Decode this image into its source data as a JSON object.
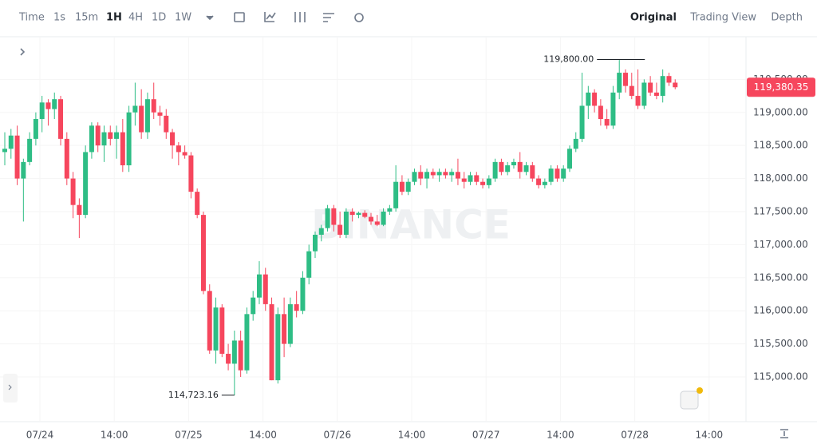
{
  "toolbar": {
    "intervals": [
      "Time",
      "1s",
      "15m",
      "1H",
      "4H",
      "1D",
      "1W"
    ],
    "active_interval": 3,
    "views": [
      "Original",
      "Trading View",
      "Depth"
    ],
    "active_view": 0
  },
  "chart_data": {
    "type": "candlestick",
    "watermark": "BINANCE",
    "up_color": "#2ebd85",
    "down_color": "#f6465d",
    "open": [
      118400,
      118450,
      118650,
      118000,
      118250,
      118600,
      118900,
      119150,
      119050,
      119200,
      118600,
      118000,
      117600,
      117450,
      118400,
      118800,
      118500,
      118700,
      118600,
      118700,
      118200,
      119000,
      119100,
      118700,
      119200,
      119000,
      118950,
      118700,
      118500,
      118400,
      118350,
      117800,
      117450,
      116300,
      115400,
      116050,
      115350,
      115200,
      115550,
      115100,
      115950,
      116200,
      116550,
      116100,
      114950,
      115950,
      115500,
      116100,
      116000,
      116500,
      116900,
      117150,
      117250,
      117550,
      117300,
      117150,
      117500,
      117450,
      117480,
      117420,
      117350,
      117300,
      117500,
      117550,
      117950,
      117800,
      117950,
      118100,
      118000,
      118100,
      118050,
      118100,
      118050,
      118100,
      118000,
      117950,
      118050,
      117950,
      117900,
      118000,
      118250,
      118100,
      118200,
      118250,
      118100,
      118200,
      118000,
      117900,
      117950,
      118150,
      118000,
      118150,
      118450,
      118600,
      119100,
      119300,
      119100,
      118900,
      118800,
      119300,
      119600,
      119400,
      119250,
      119100,
      119450,
      119300,
      119250,
      119550,
      119450
    ],
    "high": [
      118700,
      118750,
      118800,
      118300,
      118700,
      119000,
      119250,
      119200,
      119300,
      119250,
      118700,
      118100,
      117700,
      118500,
      118850,
      118850,
      118800,
      118800,
      118800,
      118900,
      119100,
      119450,
      119350,
      119300,
      119450,
      119100,
      119050,
      118750,
      118550,
      118500,
      118400,
      117850,
      117500,
      116400,
      116200,
      116100,
      115500,
      115700,
      115700,
      116050,
      116300,
      116750,
      116650,
      116200,
      116050,
      116200,
      116200,
      116300,
      116600,
      117000,
      117200,
      117300,
      117600,
      117600,
      117500,
      117550,
      117550,
      117500,
      117520,
      117480,
      117450,
      117550,
      117600,
      118200,
      118050,
      118000,
      118150,
      118200,
      118150,
      118150,
      118150,
      118150,
      118150,
      118300,
      118100,
      118100,
      118100,
      118000,
      118050,
      118300,
      118300,
      118250,
      118300,
      118400,
      118250,
      118250,
      118050,
      118000,
      118200,
      118200,
      118200,
      118500,
      118700,
      119600,
      119400,
      119350,
      119200,
      119050,
      119400,
      119800,
      119650,
      119600,
      119650,
      119500,
      119550,
      119450,
      119650,
      119600,
      119500
    ],
    "low": [
      118200,
      118300,
      117900,
      117350,
      118200,
      118500,
      118700,
      118800,
      118900,
      118500,
      117900,
      117400,
      117100,
      117400,
      118300,
      118400,
      118250,
      118500,
      118300,
      118100,
      118100,
      118800,
      118600,
      118600,
      118900,
      118800,
      118600,
      118300,
      118200,
      118300,
      117700,
      117400,
      116250,
      115350,
      115200,
      115300,
      115100,
      114723.16,
      115000,
      115050,
      115850,
      116100,
      116000,
      114950,
      114900,
      115300,
      115450,
      115900,
      115950,
      116400,
      116800,
      117050,
      117200,
      117200,
      117100,
      117100,
      117350,
      117400,
      117400,
      117300,
      117280,
      117280,
      117450,
      117500,
      117750,
      117750,
      117900,
      117900,
      117850,
      118000,
      117950,
      118000,
      117950,
      117900,
      117850,
      117900,
      117900,
      117850,
      117850,
      117950,
      118050,
      118050,
      118150,
      118000,
      118050,
      117950,
      117850,
      117850,
      117900,
      117950,
      117950,
      118100,
      118400,
      118550,
      118900,
      119000,
      118800,
      118750,
      118750,
      119200,
      119300,
      119200,
      119050,
      119050,
      119250,
      119200,
      119150,
      119400,
      119350
    ],
    "close": [
      118450,
      118650,
      118000,
      118250,
      118600,
      118900,
      119150,
      119050,
      119200,
      118600,
      118000,
      117600,
      117450,
      118400,
      118800,
      118500,
      118700,
      118600,
      118700,
      118200,
      119000,
      119100,
      118700,
      119200,
      119000,
      118950,
      118700,
      118500,
      118400,
      118350,
      117800,
      117450,
      116300,
      115400,
      116050,
      115350,
      115200,
      115550,
      115100,
      115950,
      116200,
      116550,
      116100,
      114950,
      115950,
      115500,
      116100,
      116000,
      116500,
      116900,
      117150,
      117250,
      117550,
      117300,
      117150,
      117500,
      117450,
      117480,
      117420,
      117350,
      117300,
      117500,
      117550,
      117950,
      117800,
      117950,
      118100,
      118000,
      118100,
      118050,
      118100,
      118050,
      118100,
      118000,
      117950,
      118050,
      117950,
      117900,
      118000,
      118250,
      118100,
      118200,
      118250,
      118100,
      118200,
      118000,
      117900,
      117950,
      118150,
      118000,
      118150,
      118450,
      118600,
      119100,
      119300,
      119100,
      118900,
      118800,
      119300,
      119600,
      119400,
      119250,
      119100,
      119450,
      119300,
      119250,
      119550,
      119450,
      119380.35
    ],
    "x_labels": [
      "07/24",
      "14:00",
      "07/25",
      "14:00",
      "07/26",
      "14:00",
      "07/27",
      "14:00",
      "07/28",
      "14:00"
    ],
    "ylim": [
      114360,
      120120
    ],
    "yticks": [
      {
        "value": 115000,
        "label": "115,000.00"
      },
      {
        "value": 115500,
        "label": "115,500.00"
      },
      {
        "value": 116000,
        "label": "116,000.00"
      },
      {
        "value": 116500,
        "label": "116,500.00"
      },
      {
        "value": 117000,
        "label": "117,000.00"
      },
      {
        "value": 117500,
        "label": "117,500.00"
      },
      {
        "value": 118000,
        "label": "118,000.00"
      },
      {
        "value": 118500,
        "label": "118,500.00"
      },
      {
        "value": 119000,
        "label": "119,000.00"
      },
      {
        "value": 119500,
        "label": "119,500.00"
      }
    ],
    "high_marker": {
      "value": 119800,
      "label": "119,800.00"
    },
    "low_marker": {
      "value": 114723.16,
      "label": "114,723.16"
    },
    "last_price": {
      "value": 119380.35,
      "label": "119,380.35"
    },
    "grid": true
  }
}
